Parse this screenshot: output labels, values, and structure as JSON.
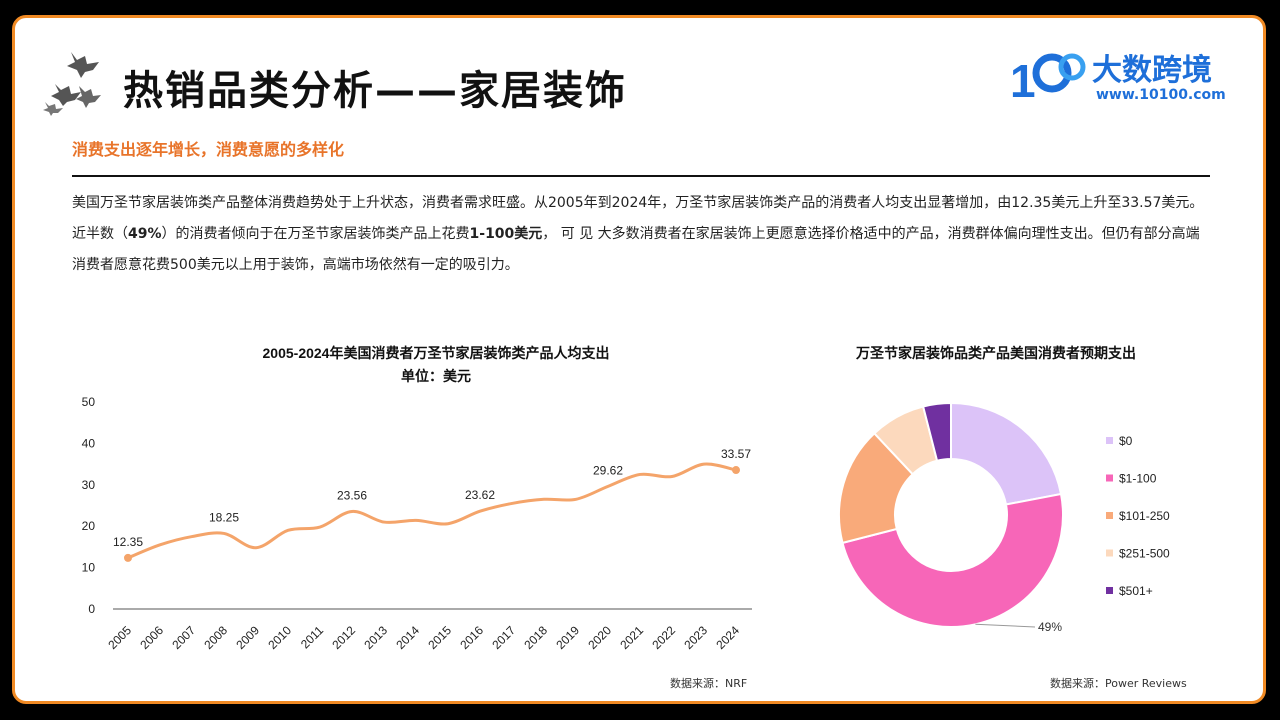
{
  "header": {
    "title": "热销品类分析——家居装饰",
    "logo_brand": "大数跨境",
    "logo_url": "www.10100.com"
  },
  "section": {
    "subtitle": "消费支出逐年增长，消费意愿的多样化"
  },
  "paragraph1": "美国万圣节家居装饰类产品整体消费趋势处于上升状态，消费者需求旺盛。从2005年到2024年，万圣节家居装饰类产品的消费者人均支出显著增加，由12.35美元上升至33.57美元。",
  "paragraph2": {
    "part1": "近半数（",
    "bold1": "49%",
    "part2": "）的消费者倾向于在万圣节家居装饰类产品上花费",
    "bold2": "1-100美元",
    "part3": "， 可 见 大多数消费者在家居装饰上更愿意选择价格适中的产品，消费群体偏向理性支出。但仍有部分高端消费者愿意花费500美元以上用于装饰，高端市场依然有一定的吸引力。"
  },
  "chart_data": [
    {
      "type": "line",
      "title": "2005-2024年美国消费者万圣节家居装饰类产品人均支出",
      "subtitle": "单位：美元",
      "x": [
        "2005",
        "2006",
        "2007",
        "2008",
        "2009",
        "2010",
        "2011",
        "2012",
        "2013",
        "2014",
        "2015",
        "2016",
        "2017",
        "2018",
        "2019",
        "2020",
        "2021",
        "2022",
        "2023",
        "2024"
      ],
      "values": [
        12.35,
        15.5,
        17.5,
        18.25,
        14.8,
        19.0,
        19.8,
        23.56,
        21.0,
        21.4,
        20.6,
        23.62,
        25.5,
        26.5,
        26.5,
        29.62,
        32.5,
        32.0,
        35.0,
        33.57
      ],
      "data_labels": [
        {
          "x": "2005",
          "label": "12.35"
        },
        {
          "x": "2008",
          "label": "18.25"
        },
        {
          "x": "2012",
          "label": "23.56"
        },
        {
          "x": "2016",
          "label": "23.62"
        },
        {
          "x": "2020",
          "label": "29.62"
        },
        {
          "x": "2024",
          "label": "33.57"
        }
      ],
      "yticks": [
        "0",
        "10",
        "20",
        "30",
        "40",
        "50"
      ],
      "ylim": [
        0,
        50
      ],
      "grid": false,
      "line_color": "#f4a46a",
      "source": "数据来源：NRF"
    },
    {
      "type": "pie",
      "title": "万圣节家居装饰品类产品美国消费者预期支出",
      "categories": [
        "$0",
        "$1-100",
        "$101-250",
        "$251-500",
        "$501+"
      ],
      "values": [
        22,
        49,
        17,
        8,
        4
      ],
      "colors": [
        "#dcc3f8",
        "#f766b8",
        "#f9aa7a",
        "#fcd9bd",
        "#7030a0"
      ],
      "slice_label": "49%",
      "legend_position": "right",
      "source": "数据来源：Power Reviews"
    }
  ],
  "colors": {
    "frame": "#f08a24",
    "subtitle": "#e8742a",
    "brand": "#1e6fd9"
  }
}
